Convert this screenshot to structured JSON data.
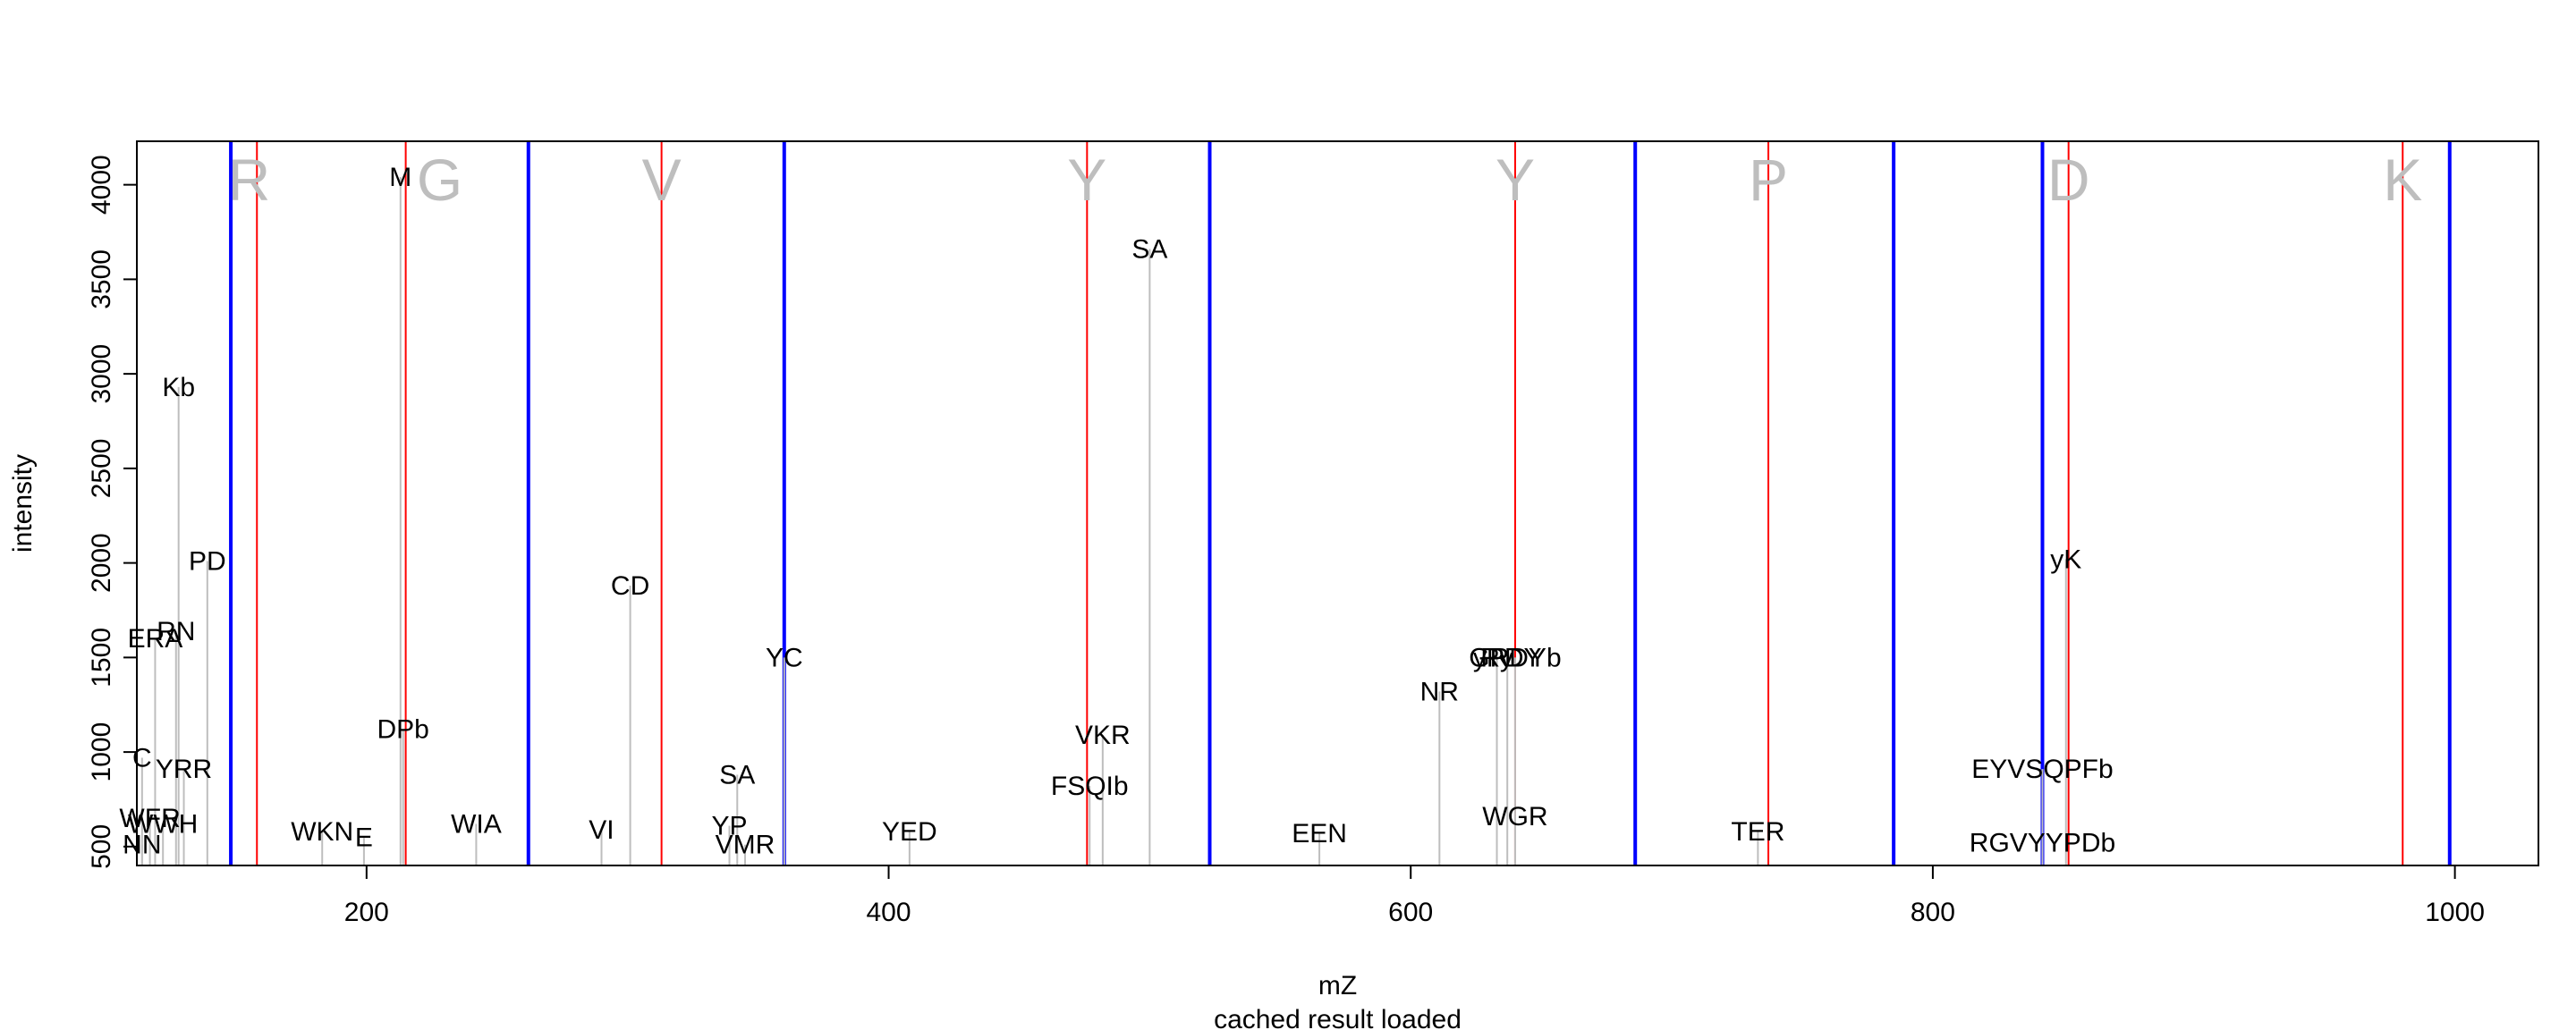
{
  "chart_data": {
    "type": "bar",
    "xlabel": "mZ",
    "ylabel": "intensity",
    "subtitle": "cached result loaded",
    "xlim": [
      112,
      1032
    ],
    "ylim": [
      400,
      4230
    ],
    "x_ticks": [
      200,
      400,
      600,
      800,
      1000
    ],
    "y_ticks": [
      500,
      1000,
      1500,
      2000,
      2500,
      3000,
      3500,
      4000
    ],
    "grid": false,
    "colors": {
      "peak": "#bebebe",
      "fragment_line": "#ff0000",
      "ion_line": "#0000ff",
      "residue_letter": "#bebebe"
    },
    "peaks": [
      {
        "x": 114,
        "y": 510,
        "label": "NN"
      },
      {
        "x": 114,
        "y": 970,
        "label": "C"
      },
      {
        "x": 117,
        "y": 650,
        "label": "WFR"
      },
      {
        "x": 119,
        "y": 1600,
        "label": "ERA"
      },
      {
        "x": 122,
        "y": 620,
        "label": "WWH"
      },
      {
        "x": 127,
        "y": 1640,
        "label": "RN"
      },
      {
        "x": 128,
        "y": 2930,
        "label": "Kb"
      },
      {
        "x": 130,
        "y": 910,
        "label": "YRR"
      },
      {
        "x": 139,
        "y": 2010,
        "label": "PD"
      },
      {
        "x": 183,
        "y": 580,
        "label": "WKN"
      },
      {
        "x": 199,
        "y": 550,
        "label": "E"
      },
      {
        "x": 213,
        "y": 4040,
        "label": "M"
      },
      {
        "x": 214,
        "y": 1120,
        "label": "DPb"
      },
      {
        "x": 242,
        "y": 620,
        "label": "WIA"
      },
      {
        "x": 290,
        "y": 590,
        "label": "VI"
      },
      {
        "x": 301,
        "y": 1880,
        "label": "CD"
      },
      {
        "x": 339,
        "y": 610,
        "label": "YP"
      },
      {
        "x": 342,
        "y": 880,
        "label": "SA"
      },
      {
        "x": 345,
        "y": 510,
        "label": "VMR"
      },
      {
        "x": 360,
        "y": 1500,
        "label": "YC"
      },
      {
        "x": 408,
        "y": 580,
        "label": "YED"
      },
      {
        "x": 477,
        "y": 820,
        "label": "FSQIb"
      },
      {
        "x": 482,
        "y": 1090,
        "label": "VKR"
      },
      {
        "x": 500,
        "y": 3660,
        "label": "SA"
      },
      {
        "x": 565,
        "y": 570,
        "label": "EEN"
      },
      {
        "x": 611,
        "y": 1320,
        "label": "NR"
      },
      {
        "x": 633,
        "y": 1500,
        "label": "Ry"
      },
      {
        "x": 637,
        "y": 1500,
        "label": "yPDY"
      },
      {
        "x": 640,
        "y": 1500,
        "label": "GRDYb"
      },
      {
        "x": 640,
        "y": 660,
        "label": "WGR"
      },
      {
        "x": 733,
        "y": 580,
        "label": "TER"
      },
      {
        "x": 842,
        "y": 910,
        "label": "EYVSQPFb"
      },
      {
        "x": 842,
        "y": 520,
        "label": "RGVYYPDb"
      },
      {
        "x": 851,
        "y": 2020,
        "label": "yK"
      }
    ],
    "fragment_lines": [
      158,
      215,
      313,
      476,
      640,
      737,
      852,
      980
    ],
    "ion_lines": [
      148,
      262,
      360,
      523,
      686,
      785,
      842,
      998
    ],
    "residue_letters": [
      {
        "x": 155,
        "letter": "R"
      },
      {
        "x": 228,
        "letter": "G"
      },
      {
        "x": 313,
        "letter": "V"
      },
      {
        "x": 476,
        "letter": "Y"
      },
      {
        "x": 640,
        "letter": "Y"
      },
      {
        "x": 737,
        "letter": "P"
      },
      {
        "x": 852,
        "letter": "D"
      },
      {
        "x": 980,
        "letter": "K"
      }
    ]
  }
}
